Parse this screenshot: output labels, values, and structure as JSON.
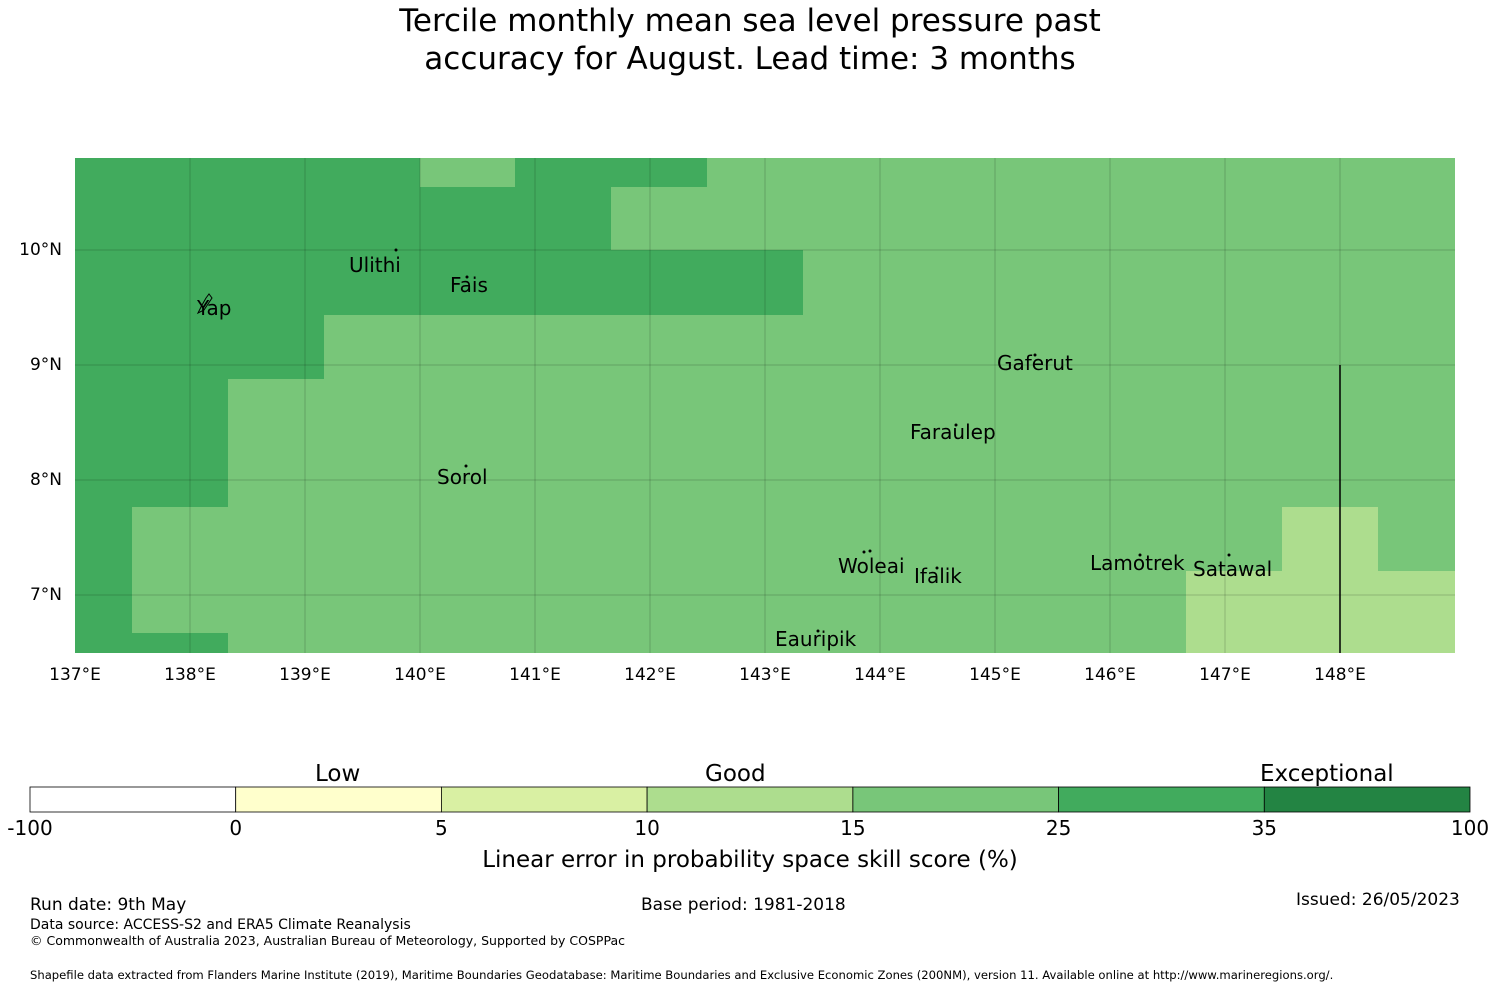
{
  "title_line1": "Tercile monthly mean sea level pressure past",
  "title_line2": "accuracy for August. Lead time: 3 months",
  "map": {
    "lon_range": [
      137.0,
      149.0
    ],
    "lat_range": [
      6.5,
      10.8
    ],
    "grid_cell_deg": [
      0.833,
      0.556
    ],
    "lat_ticks": [
      "10°N",
      "9°N",
      "8°N",
      "7°N"
    ],
    "lon_ticks": [
      "137°E",
      "138°E",
      "139°E",
      "140°E",
      "141°E",
      "142°E",
      "143°E",
      "144°E",
      "145°E",
      "146°E",
      "147°E",
      "148°E"
    ],
    "colors": {
      "c25_35": "#41ab5d",
      "c15_25": "#78c679",
      "c10_15": "#addd8e"
    },
    "places": [
      {
        "name": "Ulithi",
        "lon": 139.7,
        "lat": 9.9
      },
      {
        "name": "Fais",
        "lon": 140.45,
        "lat": 9.73
      },
      {
        "name": "Yap",
        "lon": 138.2,
        "lat": 9.52
      },
      {
        "name": "Gaferut",
        "lon": 145.35,
        "lat": 9.05
      },
      {
        "name": "Faraulep",
        "lon": 144.65,
        "lat": 8.45
      },
      {
        "name": "Sorol",
        "lon": 140.37,
        "lat": 8.05
      },
      {
        "name": "Woleai",
        "lon": 143.9,
        "lat": 7.3
      },
      {
        "name": "Ifalik",
        "lon": 144.45,
        "lat": 7.2
      },
      {
        "name": "Lamotrek",
        "lon": 146.3,
        "lat": 7.32
      },
      {
        "name": "Satawal",
        "lon": 147.07,
        "lat": 7.27
      },
      {
        "name": "Eauripik",
        "lon": 143.45,
        "lat": 6.62
      }
    ]
  },
  "colorbar": {
    "category_labels": [
      "Low",
      "Good",
      "Exceptional"
    ],
    "tick_labels": [
      "-100",
      "0",
      "5",
      "10",
      "15",
      "25",
      "35",
      "100"
    ],
    "colors": [
      "#ffffff",
      "#ffffcc",
      "#d9f0a3",
      "#addd8e",
      "#78c679",
      "#41ab5d",
      "#238443"
    ],
    "title": "Linear error in probability space skill score (%)"
  },
  "footer": {
    "run_date": "Run date: 9th May",
    "base_period": "Base period: 1981-2018",
    "issued": "Issued: 26/05/2023",
    "data_source": "Data source: ACCESS-S2 and ERA5 Climate Reanalysis",
    "copyright": "© Commonwealth of Australia 2023, Australian Bureau of Meteorology, Supported by COSPPac",
    "shapefile": "Shapefile data extracted from Flanders Marine Institute (2019), Maritime Boundaries Geodatabase: Maritime Boundaries and Exclusive Economic Zones (200NM), version 11. Available online at http://www.marineregions.org/."
  }
}
